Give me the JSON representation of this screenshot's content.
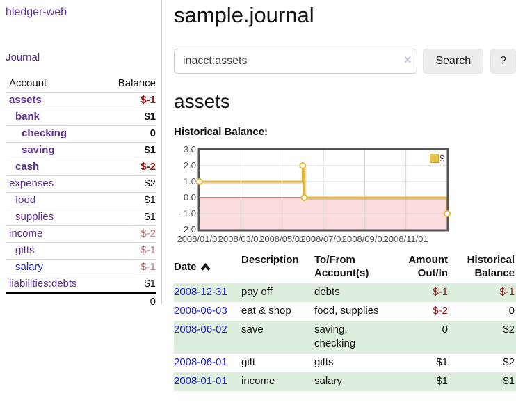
{
  "app": {
    "title": "hledger-web",
    "nav_journal": "Journal"
  },
  "sidebar": {
    "header": {
      "account": "Account",
      "balance": "Balance"
    },
    "accounts": [
      {
        "name": "assets",
        "depth": 1,
        "bold": true,
        "balance": "$-1"
      },
      {
        "name": "bank",
        "depth": 2,
        "bold": true,
        "balance": "$1"
      },
      {
        "name": "checking",
        "depth": 3,
        "bold": true,
        "balance": "0"
      },
      {
        "name": "saving",
        "depth": 3,
        "bold": true,
        "balance": "$1"
      },
      {
        "name": "cash",
        "depth": 2,
        "bold": true,
        "balance": "$-2"
      },
      {
        "name": "expenses",
        "depth": 1,
        "bold": false,
        "balance": "$2"
      },
      {
        "name": "food",
        "depth": 2,
        "bold": false,
        "balance": "$1"
      },
      {
        "name": "supplies",
        "depth": 2,
        "bold": false,
        "balance": "$1"
      },
      {
        "name": "income",
        "depth": 1,
        "bold": false,
        "balance": "$-2"
      },
      {
        "name": "gifts",
        "depth": 2,
        "bold": false,
        "balance": "$-1"
      },
      {
        "name": "salary",
        "depth": 2,
        "bold": false,
        "balance": "$-1",
        "link": "unvisited"
      },
      {
        "name": "liabilities:debts",
        "depth": 1,
        "bold": false,
        "balance": "$1"
      }
    ],
    "total": "0"
  },
  "header": {
    "title": "sample.journal"
  },
  "search": {
    "value": "inacct:assets",
    "clear_icon": "×",
    "button": "Search",
    "help_button": "?"
  },
  "main": {
    "account_title": "assets",
    "chart_label": "Historical Balance:"
  },
  "chart_data": {
    "type": "line",
    "title": "Historical Balance:",
    "legend": {
      "label": "$",
      "position": "top-right"
    },
    "series": [
      {
        "name": "$",
        "points": [
          [
            "2008-01-01",
            1
          ],
          [
            "2008-06-01",
            2
          ],
          [
            "2008-06-02",
            2
          ],
          [
            "2008-06-03",
            0
          ],
          [
            "2008-12-31",
            -1
          ]
        ]
      }
    ],
    "step_line_months": [
      [
        0,
        1
      ],
      [
        5,
        1
      ],
      [
        5,
        2
      ],
      [
        5.07,
        2
      ],
      [
        5.07,
        0
      ],
      [
        12,
        0
      ],
      [
        12,
        -1
      ]
    ],
    "markers_months": [
      [
        0,
        1
      ],
      [
        5,
        2
      ],
      [
        5.07,
        0
      ],
      [
        12,
        -1
      ]
    ],
    "y_ticks": [
      {
        "label": "3.0",
        "v": 3
      },
      {
        "label": "2.0",
        "v": 2
      },
      {
        "label": "1.0",
        "v": 1
      },
      {
        "label": "0.0",
        "v": 0
      },
      {
        "label": "-1.0",
        "v": -1
      },
      {
        "label": "-2.0",
        "v": -2
      }
    ],
    "x_ticks": [
      {
        "label": "2008/01/01",
        "m": 0
      },
      {
        "label": "2008/03/01",
        "m": 2
      },
      {
        "label": "2008/05/01",
        "m": 4
      },
      {
        "label": "2008/07/01",
        "m": 6
      },
      {
        "label": "2008/09/01",
        "m": 8
      },
      {
        "label": "2008/11/01",
        "m": 10
      }
    ],
    "ylim": [
      -2,
      3
    ],
    "xlim_months": [
      0,
      12
    ],
    "grid": true
  },
  "table": {
    "headers": {
      "date": "Date",
      "sort_icon": "chevron-up",
      "description": "Description",
      "account_l1": "To/From",
      "account_l2": "Account(s)",
      "amount_l1": "Amount",
      "amount_l2": "Out/In",
      "balance_l1": "Historical",
      "balance_l2": "Balance"
    },
    "rows": [
      {
        "date": "2008-12-31",
        "description": "pay off",
        "accounts": "debts",
        "amount": "$-1",
        "balance": "$-1"
      },
      {
        "date": "2008-06-03",
        "description": "eat & shop",
        "accounts": "food, supplies",
        "amount": "$-2",
        "balance": "0"
      },
      {
        "date": "2008-06-02",
        "description": "save",
        "accounts": "saving,\nchecking",
        "amount": "0",
        "balance": "$2"
      },
      {
        "date": "2008-06-01",
        "description": "gift",
        "accounts": "gifts",
        "amount": "$1",
        "balance": "$2"
      },
      {
        "date": "2008-01-01",
        "description": "income",
        "accounts": "salary",
        "amount": "$1",
        "balance": "$1"
      }
    ]
  },
  "colors": {
    "link_visited_purple": "#5b2d90",
    "link_unvisited_blue": "#2222cc",
    "negative_strong": "#8f1919",
    "negative_soft": "#c08080",
    "row_shade_green": "#ddeedd",
    "series_gold": "#e3b83d",
    "negative_region_pink": "#fbdcdc",
    "zero_line_red": "#8b0000",
    "chart_border_gray": "#545454",
    "button_gray": "#ededed"
  }
}
